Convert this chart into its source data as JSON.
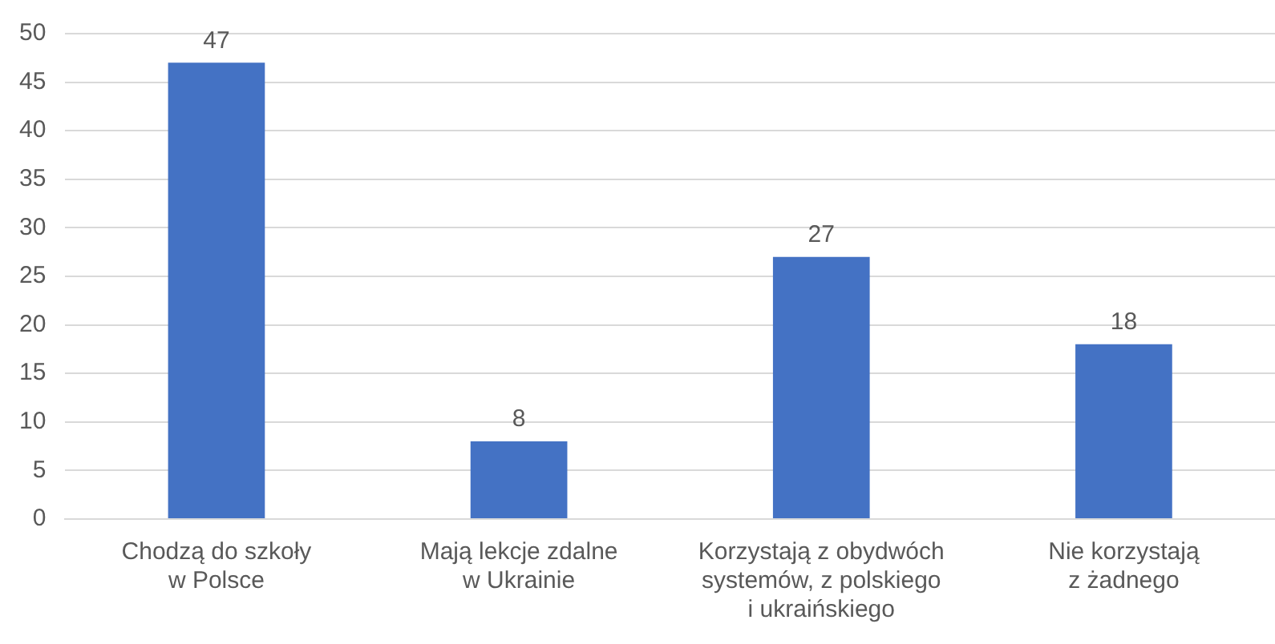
{
  "chart_data": {
    "type": "bar",
    "categories": [
      "Chodzą do szkoły\nw Polsce",
      "Mają lekcje zdalne\nw Ukrainie",
      "Korzystają z obydwóch\nsystemów, z polskiego\ni ukraińskiego",
      "Nie korzystają\nz żadnego"
    ],
    "values": [
      47,
      8,
      27,
      18
    ],
    "color": "#4472c4",
    "ylim": [
      0,
      50
    ],
    "yticks": [
      0,
      5,
      10,
      15,
      20,
      25,
      30,
      35,
      40,
      45,
      50
    ],
    "grid": "y",
    "data_labels": true,
    "legend": false
  }
}
